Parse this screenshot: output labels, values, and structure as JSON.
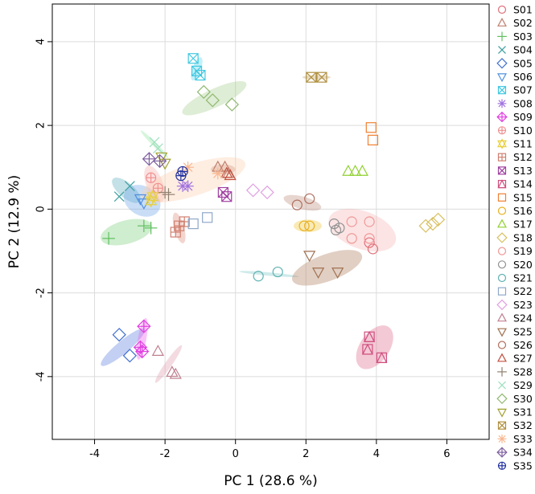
{
  "chart_data": {
    "type": "scatter",
    "xlabel": "PC 1 (28.6 %)",
    "ylabel": "PC 2 (12.9 %)",
    "xlim": [
      -5.2,
      7.2
    ],
    "ylim": [
      -5.5,
      4.9
    ],
    "xticks": [
      "-4",
      "-2",
      "0",
      "2",
      "4",
      "6"
    ],
    "yticks": [
      "-4",
      "-2",
      "0",
      "2",
      "4"
    ],
    "grid": true,
    "legend_position": "right",
    "series": [
      {
        "name": "S01",
        "color": "#e0707a",
        "marker": "circle",
        "points": [
          [
            3.8,
            -0.8
          ],
          [
            3.9,
            -0.95
          ]
        ],
        "ellipse": null
      },
      {
        "name": "S02",
        "color": "#c08070",
        "marker": "triangle",
        "points": [
          [
            -0.5,
            1.0
          ],
          [
            -0.3,
            1.0
          ],
          [
            -0.2,
            0.85
          ]
        ],
        "ellipse": {
          "cx": -0.35,
          "cy": 0.95,
          "rx": 0.35,
          "ry": 0.12,
          "angle": 0,
          "fill": "#c08070"
        }
      },
      {
        "name": "S03",
        "color": "#60c060",
        "marker": "plus",
        "points": [
          [
            -3.6,
            -0.7
          ],
          [
            -2.6,
            -0.4
          ],
          [
            -2.4,
            -0.45
          ]
        ],
        "ellipse": {
          "cx": -3.1,
          "cy": -0.55,
          "rx": 0.75,
          "ry": 0.28,
          "angle": -15,
          "fill": "#80d080"
        }
      },
      {
        "name": "S04",
        "color": "#40a0a0",
        "marker": "x",
        "points": [
          [
            -3.3,
            0.3
          ],
          [
            -3.0,
            0.55
          ]
        ],
        "ellipse": {
          "cx": -3.1,
          "cy": 0.45,
          "rx": 0.5,
          "ry": 0.18,
          "angle": 40,
          "fill": "#60b0c0"
        }
      },
      {
        "name": "S05",
        "color": "#4070d0",
        "marker": "diamond",
        "points": [
          [
            -3.3,
            -3.0
          ],
          [
            -3.0,
            -3.5
          ]
        ],
        "ellipse": {
          "cx": -3.2,
          "cy": -3.3,
          "rx": 0.8,
          "ry": 0.15,
          "angle": -40,
          "fill": "#6080e0"
        }
      },
      {
        "name": "S06",
        "color": "#5090e0",
        "marker": "triangle-down",
        "points": [
          [
            -2.7,
            0.25
          ],
          [
            -2.6,
            0.15
          ]
        ],
        "ellipse": {
          "cx": -2.65,
          "cy": 0.2,
          "rx": 0.55,
          "ry": 0.35,
          "angle": 30,
          "fill": "#70a8e8"
        }
      },
      {
        "name": "S07",
        "color": "#40c8e0",
        "marker": "square-x",
        "points": [
          [
            -1.2,
            3.6
          ],
          [
            -1.1,
            3.3
          ],
          [
            -1.0,
            3.2
          ]
        ],
        "ellipse": {
          "cx": -1.1,
          "cy": 3.35,
          "rx": 0.35,
          "ry": 0.1,
          "angle": -70,
          "fill": "#60d8f0"
        }
      },
      {
        "name": "S08",
        "color": "#a070e0",
        "marker": "asterisk",
        "points": [
          [
            -1.5,
            0.55
          ],
          [
            -1.35,
            0.55
          ]
        ],
        "ellipse": null
      },
      {
        "name": "S09",
        "color": "#e040e0",
        "marker": "diamond-plus",
        "points": [
          [
            -2.6,
            -2.8
          ],
          [
            -2.7,
            -3.3
          ],
          [
            -2.65,
            -3.4
          ]
        ],
        "ellipse": {
          "cx": -2.65,
          "cy": -3.1,
          "rx": 0.6,
          "ry": 0.1,
          "angle": -80,
          "fill": "#f060f0"
        }
      },
      {
        "name": "S10",
        "color": "#f09090",
        "marker": "circle-plus",
        "points": [
          [
            -2.4,
            0.75
          ],
          [
            -2.2,
            0.5
          ]
        ],
        "ellipse": {
          "cx": -2.3,
          "cy": 0.6,
          "rx": 0.55,
          "ry": 0.2,
          "angle": 70,
          "fill": "#f8b0b0"
        }
      },
      {
        "name": "S11",
        "color": "#e8d040",
        "marker": "star-of-david",
        "points": [
          [
            -2.4,
            0.2
          ],
          [
            -2.35,
            0.3
          ]
        ],
        "ellipse": null
      },
      {
        "name": "S12",
        "color": "#d08070",
        "marker": "square-plus",
        "points": [
          [
            -1.7,
            -0.55
          ],
          [
            -1.6,
            -0.4
          ],
          [
            -1.45,
            -0.3
          ]
        ],
        "ellipse": {
          "cx": -1.6,
          "cy": -0.45,
          "rx": 0.45,
          "ry": 0.12,
          "angle": 75,
          "fill": "#e09080"
        }
      },
      {
        "name": "S13",
        "color": "#a040a0",
        "marker": "square-x",
        "points": [
          [
            -0.35,
            0.4
          ],
          [
            -0.25,
            0.3
          ]
        ],
        "ellipse": null
      },
      {
        "name": "S14",
        "color": "#d05080",
        "marker": "square-triangle",
        "points": [
          [
            3.8,
            -3.05
          ],
          [
            3.75,
            -3.35
          ],
          [
            4.15,
            -3.55
          ]
        ],
        "ellipse": {
          "cx": 3.95,
          "cy": -3.3,
          "rx": 0.7,
          "ry": 0.35,
          "angle": -55,
          "fill": "#e07090"
        }
      },
      {
        "name": "S15",
        "color": "#f08030",
        "marker": "square",
        "points": [
          [
            3.85,
            1.95
          ],
          [
            3.9,
            1.65
          ]
        ],
        "ellipse": null
      },
      {
        "name": "S16",
        "color": "#e8b020",
        "marker": "circle",
        "points": [
          [
            1.95,
            -0.4
          ],
          [
            2.1,
            -0.4
          ]
        ],
        "ellipse": {
          "cx": 2.05,
          "cy": -0.4,
          "rx": 0.4,
          "ry": 0.15,
          "angle": 0,
          "fill": "#f0c840"
        }
      },
      {
        "name": "S17",
        "color": "#90d030",
        "marker": "triangle",
        "points": [
          [
            3.2,
            0.9
          ],
          [
            3.4,
            0.9
          ],
          [
            3.6,
            0.9
          ]
        ],
        "ellipse": null
      },
      {
        "name": "S18",
        "color": "#d8c060",
        "marker": "diamond",
        "points": [
          [
            5.4,
            -0.4
          ],
          [
            5.6,
            -0.35
          ],
          [
            5.75,
            -0.25
          ]
        ],
        "ellipse": null
      },
      {
        "name": "S19",
        "color": "#f09898",
        "marker": "circle",
        "points": [
          [
            3.3,
            -0.3
          ],
          [
            3.8,
            -0.3
          ],
          [
            3.3,
            -0.7
          ],
          [
            3.8,
            -0.7
          ]
        ],
        "ellipse": {
          "cx": 3.6,
          "cy": -0.5,
          "rx": 1.0,
          "ry": 0.45,
          "angle": 20,
          "fill": "#f8b8b8"
        }
      },
      {
        "name": "S20",
        "color": "#909090",
        "marker": "circle",
        "points": [
          [
            2.8,
            -0.35
          ],
          [
            2.85,
            -0.5
          ],
          [
            2.95,
            -0.45
          ]
        ],
        "ellipse": null
      },
      {
        "name": "S21",
        "color": "#60b0b0",
        "marker": "circle-open",
        "points": [
          [
            0.65,
            -1.6
          ],
          [
            1.2,
            -1.5
          ]
        ],
        "ellipse": {
          "cx": 0.95,
          "cy": -1.55,
          "rx": 0.85,
          "ry": 0.04,
          "angle": 5,
          "fill": "#80c8c8"
        }
      },
      {
        "name": "S22",
        "color": "#90a8c8",
        "marker": "square-open",
        "points": [
          [
            -1.2,
            -0.35
          ],
          [
            -0.8,
            -0.2
          ]
        ],
        "ellipse": null
      },
      {
        "name": "S23",
        "color": "#e0a0e0",
        "marker": "diamond-open",
        "points": [
          [
            0.5,
            0.45
          ],
          [
            0.9,
            0.4
          ]
        ],
        "ellipse": null
      },
      {
        "name": "S24",
        "color": "#c08090",
        "marker": "triangle-open",
        "points": [
          [
            -2.2,
            -3.4
          ],
          [
            -1.8,
            -3.9
          ],
          [
            -1.7,
            -3.95
          ]
        ],
        "ellipse": {
          "cx": -1.9,
          "cy": -3.7,
          "rx": 0.65,
          "ry": 0.08,
          "angle": -55,
          "fill": "#e0a0b0"
        }
      },
      {
        "name": "S25",
        "color": "#a07050",
        "marker": "triangle-down",
        "points": [
          [
            2.1,
            -1.1
          ],
          [
            2.35,
            -1.5
          ],
          [
            2.9,
            -1.5
          ]
        ],
        "ellipse": {
          "cx": 2.6,
          "cy": -1.4,
          "rx": 1.05,
          "ry": 0.32,
          "angle": -20,
          "fill": "#b08060"
        }
      },
      {
        "name": "S26",
        "color": "#b07060",
        "marker": "circle-open",
        "points": [
          [
            1.75,
            0.1
          ],
          [
            2.1,
            0.25
          ]
        ],
        "ellipse": {
          "cx": 1.9,
          "cy": 0.15,
          "rx": 0.55,
          "ry": 0.15,
          "angle": 15,
          "fill": "#c09080"
        }
      },
      {
        "name": "S27",
        "color": "#c05040",
        "marker": "triangle-open",
        "points": [
          [
            -0.25,
            0.85
          ],
          [
            -0.15,
            0.8
          ]
        ],
        "ellipse": null
      },
      {
        "name": "S28",
        "color": "#908070",
        "marker": "plus",
        "points": [
          [
            -2.0,
            0.4
          ],
          [
            -1.9,
            0.35
          ]
        ],
        "ellipse": null
      },
      {
        "name": "S29",
        "color": "#a0e0c0",
        "marker": "x",
        "points": [
          [
            -2.3,
            1.6
          ],
          [
            -2.2,
            1.45
          ]
        ],
        "ellipse": {
          "cx": -2.3,
          "cy": 1.55,
          "rx": 0.55,
          "ry": 0.05,
          "angle": 45,
          "fill": "#90e8a0"
        }
      },
      {
        "name": "S30",
        "color": "#90b870",
        "marker": "diamond-open",
        "points": [
          [
            -0.9,
            2.8
          ],
          [
            -0.65,
            2.6
          ],
          [
            -0.1,
            2.5
          ]
        ],
        "ellipse": {
          "cx": -0.6,
          "cy": 2.65,
          "rx": 1.0,
          "ry": 0.22,
          "angle": -25,
          "fill": "#a8d090"
        }
      },
      {
        "name": "S31",
        "color": "#a0a030",
        "marker": "triangle-down",
        "points": [
          [
            -2.1,
            1.25
          ],
          [
            -2.0,
            1.1
          ]
        ],
        "ellipse": null
      },
      {
        "name": "S32",
        "color": "#b09040",
        "marker": "square-x",
        "points": [
          [
            2.15,
            3.15
          ],
          [
            2.45,
            3.15
          ]
        ],
        "ellipse": {
          "cx": 2.3,
          "cy": 3.15,
          "rx": 0.4,
          "ry": 0.05,
          "angle": 0,
          "fill": "#c0a060"
        }
      },
      {
        "name": "S33",
        "color": "#f8b890",
        "marker": "asterisk",
        "points": [
          [
            -1.35,
            1.0
          ],
          [
            -0.5,
            0.85
          ]
        ],
        "ellipse": {
          "cx": -1.2,
          "cy": 0.7,
          "rx": 1.55,
          "ry": 0.38,
          "angle": -18,
          "fill": "#fcd0b0"
        }
      },
      {
        "name": "S34",
        "color": "#8060a0",
        "marker": "diamond-plus",
        "points": [
          [
            -2.45,
            1.2
          ],
          [
            -2.15,
            1.15
          ]
        ],
        "ellipse": null
      },
      {
        "name": "S35",
        "color": "#2030a0",
        "marker": "circle-plus",
        "points": [
          [
            -1.55,
            0.8
          ],
          [
            -1.5,
            0.9
          ]
        ],
        "ellipse": null
      }
    ]
  }
}
